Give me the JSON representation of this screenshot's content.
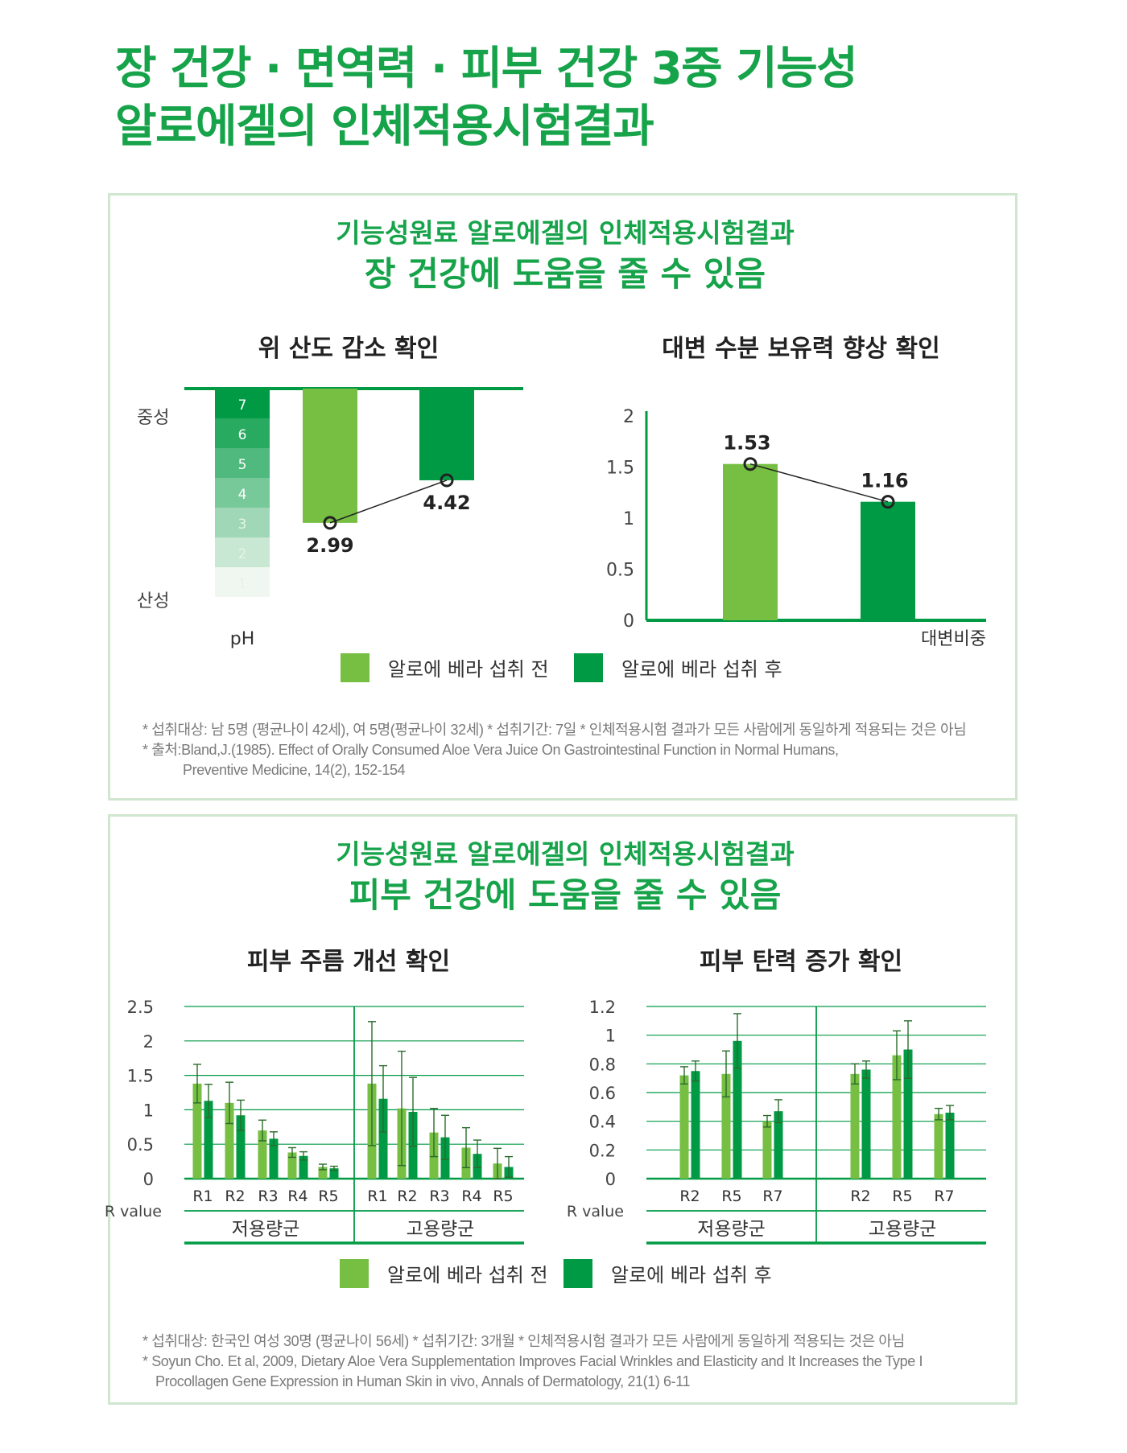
{
  "headline": {
    "line1": "장 건강 · 면역력 · 피부 건강 3중 기능성",
    "line2": "알로에겔의 인체적용시험결과"
  },
  "colors": {
    "before": "#76bf43",
    "after": "#009a44",
    "accent": "#16a34a",
    "border": "#cfe6cf"
  },
  "panel_gut": {
    "subtitle": "기능성원료 알로에겔의 인체적용시험결과",
    "title": "장 건강에 도움을 줄 수 있음",
    "legend": {
      "before": "알로에 베라 섭취 전",
      "after": "알로에 베라 섭취 후"
    },
    "notes": [
      "* 섭취대상: 남 5명 (평균나이 42세), 여 5명(평균나이 32세)  * 섭취기간: 7일  * 인체적용시험 결과가 모든 사람에게 동일하게 적용되는 것은 아님",
      "* 출처:Bland,J.(1985). Effect of Orally Consumed Aloe Vera Juice On Gastrointestinal Function in Normal Humans,",
      "Preventive Medicine, 14(2), 152-154"
    ]
  },
  "panel_skin": {
    "subtitle": "기능성원료 알로에겔의 인체적용시험결과",
    "title": "피부 건강에 도움을 줄 수 있음",
    "legend": {
      "before": "알로에 베라 섭취 전",
      "after": "알로에 베라 섭취 후"
    },
    "notes": [
      "* 섭취대상: 한국인 여성 30명 (평균나이 56세)  * 섭취기간: 3개월  * 인체적용시험 결과가 모든 사람에게 동일하게 적용되는 것은 아님",
      "* Soyun Cho. Et al, 2009, Dietary Aloe Vera Supplementation Improves Facial Wrinkles and Elasticity and It Increases the Type I",
      "Procollagen Gene Expression in Human Skin in vivo, Annals of Dermatology, 21(1) 6-11"
    ]
  },
  "chart_data": [
    {
      "type": "bar",
      "title": "위 산도 감소 확인",
      "xlabel": "pH",
      "scale_labels": {
        "top": "중성",
        "bottom": "산성"
      },
      "ph_scale": [
        "7",
        "6",
        "5",
        "4",
        "3",
        "2",
        "1"
      ],
      "categories": [
        "알로에 베라 섭취 전",
        "알로에 베라 섭취 후"
      ],
      "values": [
        2.99,
        4.42
      ],
      "data_labels": [
        "2.99",
        "4.42"
      ],
      "ylim": [
        0.5,
        7.5
      ],
      "inverted": true
    },
    {
      "type": "bar",
      "title": "대변 수분 보유력 향상 확인",
      "xlabel": "대변비중",
      "categories": [
        "알로에 베라 섭취 전",
        "알로에 베라 섭취 후"
      ],
      "values": [
        1.53,
        1.16
      ],
      "data_labels": [
        "1.53",
        "1.16"
      ],
      "ylim": [
        0,
        2
      ],
      "yticks": [
        "0",
        "0.5",
        "1",
        "1.5",
        "2"
      ]
    },
    {
      "type": "bar",
      "title": "피부 주름 개선 확인",
      "ylabel": "R value",
      "ylim": [
        0,
        2.5
      ],
      "yticks": [
        "0",
        "0.5",
        "1",
        "1.5",
        "2",
        "2.5"
      ],
      "groups": [
        {
          "name": "저용량군",
          "categories": [
            "R1",
            "R2",
            "R3",
            "R4",
            "R5"
          ],
          "series": [
            {
              "name": "알로에 베라 섭취 전",
              "values": [
                1.38,
                1.1,
                0.7,
                0.38,
                0.17
              ],
              "err": [
                0.28,
                0.3,
                0.15,
                0.07,
                0.04
              ]
            },
            {
              "name": "알로에 베라 섭취 후",
              "values": [
                1.13,
                0.92,
                0.58,
                0.33,
                0.15
              ],
              "err": [
                0.24,
                0.22,
                0.1,
                0.06,
                0.03
              ]
            }
          ]
        },
        {
          "name": "고용량군",
          "categories": [
            "R1",
            "R2",
            "R3",
            "R4",
            "R5"
          ],
          "series": [
            {
              "name": "알로에 베라 섭취 전",
              "values": [
                1.38,
                1.02,
                0.67,
                0.45,
                0.22
              ],
              "err": [
                0.9,
                0.83,
                0.35,
                0.29,
                0.22
              ]
            },
            {
              "name": "알로에 베라 섭취 후",
              "values": [
                1.16,
                0.97,
                0.6,
                0.36,
                0.17
              ],
              "err": [
                0.48,
                0.5,
                0.32,
                0.2,
                0.15
              ]
            }
          ]
        }
      ]
    },
    {
      "type": "bar",
      "title": "피부 탄력 증가 확인",
      "ylabel": "R value",
      "ylim": [
        0,
        1.2
      ],
      "yticks": [
        "0",
        "0.2",
        "0.4",
        "0.6",
        "0.8",
        "1",
        "1.2"
      ],
      "groups": [
        {
          "name": "저용량군",
          "categories": [
            "R2",
            "R5",
            "R7"
          ],
          "series": [
            {
              "name": "알로에 베라 섭취 전",
              "values": [
                0.72,
                0.73,
                0.4
              ],
              "err": [
                0.06,
                0.16,
                0.04
              ]
            },
            {
              "name": "알로에 베라 섭취 후",
              "values": [
                0.75,
                0.96,
                0.47
              ],
              "err": [
                0.07,
                0.19,
                0.08
              ]
            }
          ]
        },
        {
          "name": "고용량군",
          "categories": [
            "R2",
            "R5",
            "R7"
          ],
          "series": [
            {
              "name": "알로에 베라 섭취 전",
              "values": [
                0.73,
                0.86,
                0.45
              ],
              "err": [
                0.07,
                0.17,
                0.04
              ]
            },
            {
              "name": "알로에 베라 섭취 후",
              "values": [
                0.76,
                0.9,
                0.46
              ],
              "err": [
                0.06,
                0.2,
                0.05
              ]
            }
          ]
        }
      ]
    }
  ]
}
